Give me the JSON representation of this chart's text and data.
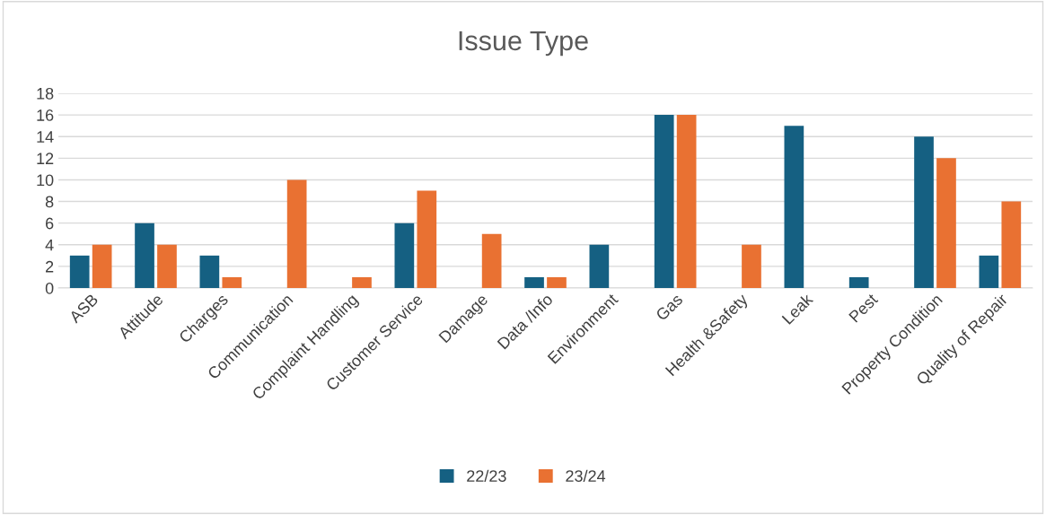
{
  "chart_data": {
    "type": "bar",
    "title": "Issue Type",
    "categories": [
      "ASB",
      "Attitude",
      "Charges",
      "Communication",
      "Complaint Handling",
      "Customer Service",
      "Damage",
      "Data /Info",
      "Environment",
      "Gas",
      "Health &Safety",
      "Leak",
      "Pest",
      "Property Condition",
      "Quality of Repair"
    ],
    "series": [
      {
        "name": "22/23",
        "color": "#156082",
        "values": [
          3,
          6,
          3,
          null,
          null,
          6,
          null,
          1,
          4,
          16,
          null,
          15,
          1,
          14,
          3
        ]
      },
      {
        "name": "23/24",
        "color": "#e97132",
        "values": [
          4,
          4,
          1,
          10,
          1,
          9,
          5,
          1,
          null,
          16,
          4,
          null,
          null,
          12,
          8
        ]
      }
    ],
    "ylim": [
      0,
      18
    ],
    "yticks": [
      0,
      2,
      4,
      6,
      8,
      10,
      12,
      14,
      16,
      18
    ],
    "grid": "y",
    "legend": "bottom"
  }
}
